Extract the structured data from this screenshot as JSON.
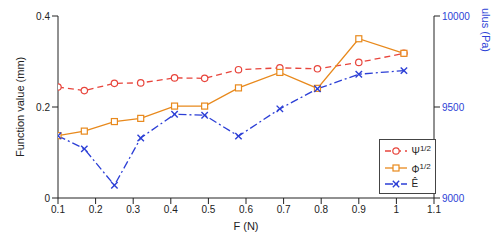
{
  "chart_data": {
    "type": "line",
    "x_label": "F (N)",
    "y_label": "Function value (mm)",
    "y2_label": "Young's modulus (Pa)",
    "x": [
      0.1,
      0.17,
      0.25,
      0.32,
      0.41,
      0.49,
      0.58,
      0.69,
      0.79,
      0.9,
      1.02
    ],
    "xlim": [
      0.1,
      1.1
    ],
    "xticks": [
      0.1,
      0.2,
      0.3,
      0.4,
      0.5,
      0.6,
      0.7,
      0.8,
      0.9,
      1,
      1.1
    ],
    "ylim": [
      0,
      0.4
    ],
    "yticks": [
      0,
      0.2,
      0.4
    ],
    "y2lim": [
      9000,
      10000
    ],
    "y2ticks": [
      9000,
      9500,
      10000
    ],
    "legend": "lower right",
    "grid": false,
    "series": [
      {
        "name": "Ψ1/2",
        "color": "#e8453c",
        "marker": "circle",
        "line_style": "dashed",
        "values": [
          0.244,
          0.236,
          0.252,
          0.253,
          0.264,
          0.263,
          0.282,
          0.286,
          0.284,
          0.298,
          0.318
        ]
      },
      {
        "name": "Φ1/2",
        "color": "#e8891c",
        "marker": "square",
        "line_style": "solid",
        "values": [
          0.137,
          0.147,
          0.168,
          0.175,
          0.202,
          0.202,
          0.242,
          0.276,
          0.241,
          0.35,
          0.318
        ]
      },
      {
        "name": "Ê",
        "color": "#2c3fd6",
        "marker": "x",
        "line_style": "dashdot",
        "axis": "y2",
        "values": [
          9342,
          9270,
          9070,
          9330,
          9460,
          9455,
          9340,
          9490,
          9600,
          9680,
          9700
        ]
      }
    ]
  }
}
